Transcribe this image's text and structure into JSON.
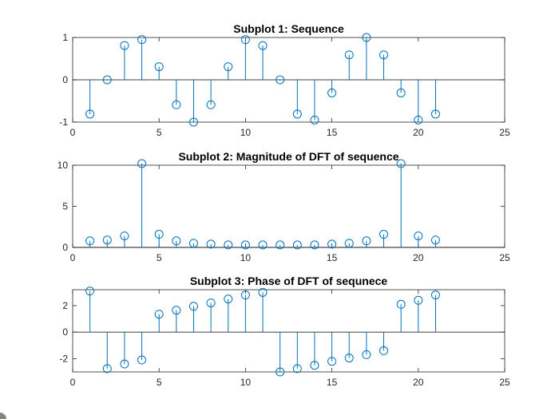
{
  "chart_data": [
    {
      "type": "stem",
      "title": "Subplot 1: Sequence",
      "xlim": [
        0,
        25
      ],
      "ylim": [
        -1,
        1
      ],
      "xticks": [
        0,
        5,
        10,
        15,
        20,
        25
      ],
      "yticks": [
        -1,
        0,
        1
      ],
      "x": [
        1,
        2,
        3,
        4,
        5,
        6,
        7,
        8,
        9,
        10,
        11,
        12,
        13,
        14,
        15,
        16,
        17,
        18,
        19,
        20,
        21
      ],
      "values": [
        -0.81,
        0.0,
        0.81,
        0.95,
        0.31,
        -0.59,
        -1.0,
        -0.59,
        0.31,
        0.95,
        0.81,
        0.0,
        -0.81,
        -0.95,
        -0.31,
        0.59,
        1.0,
        0.59,
        -0.31,
        -0.95,
        -0.81
      ]
    },
    {
      "type": "stem",
      "title": "Subplot 2: Magnitude of DFT of sequence",
      "xlim": [
        0,
        25
      ],
      "ylim": [
        0,
        10
      ],
      "xticks": [
        0,
        5,
        10,
        15,
        20,
        25
      ],
      "yticks": [
        0,
        5,
        10
      ],
      "x": [
        1,
        2,
        3,
        4,
        5,
        6,
        7,
        8,
        9,
        10,
        11,
        12,
        13,
        14,
        15,
        16,
        17,
        18,
        19,
        20,
        21
      ],
      "values": [
        0.8,
        0.9,
        1.4,
        10.2,
        1.6,
        0.8,
        0.5,
        0.4,
        0.3,
        0.3,
        0.3,
        0.3,
        0.3,
        0.3,
        0.4,
        0.5,
        0.8,
        1.6,
        10.2,
        1.4,
        0.9
      ]
    },
    {
      "type": "stem",
      "title": "Subplot 3: Phase of DFT of sequnece",
      "xlim": [
        0,
        25
      ],
      "ylim": [
        -3,
        3.2
      ],
      "xticks": [
        0,
        5,
        10,
        15,
        20,
        25
      ],
      "yticks": [
        -2,
        0,
        2
      ],
      "x": [
        1,
        2,
        3,
        4,
        5,
        6,
        7,
        8,
        9,
        10,
        11,
        12,
        13,
        14,
        15,
        16,
        17,
        18,
        19,
        20,
        21
      ],
      "values": [
        3.1,
        -2.75,
        -2.4,
        -2.1,
        1.35,
        1.65,
        1.95,
        2.2,
        2.5,
        2.8,
        3.0,
        -3.0,
        -2.75,
        -2.5,
        -2.2,
        -1.95,
        -1.7,
        -1.4,
        2.1,
        2.4,
        2.8
      ]
    }
  ],
  "colors": {
    "stem": "#0072BD",
    "axis": "#262626",
    "background": "#ffffff"
  }
}
